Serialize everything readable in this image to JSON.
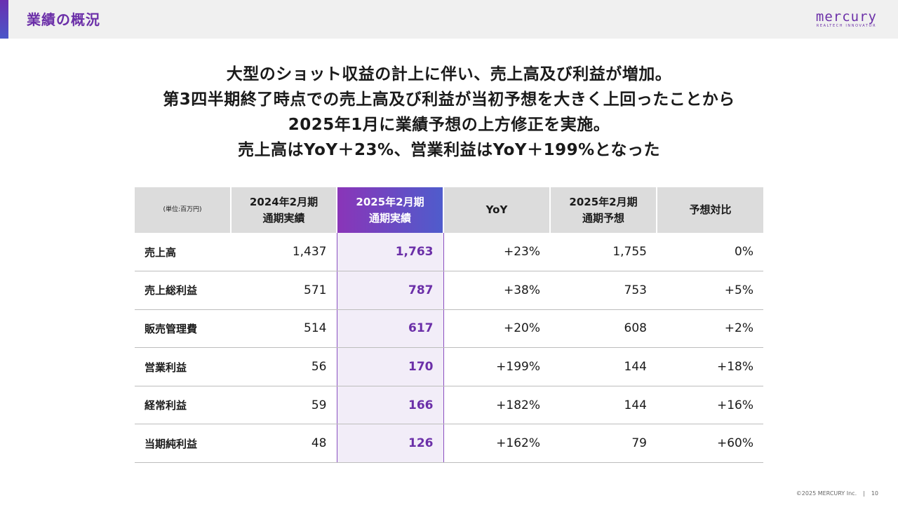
{
  "header": {
    "title": "業績の概況",
    "logo_word": "mercury",
    "logo_tagline": "REALTECH INNOVATOR"
  },
  "lead": {
    "lines": [
      "大型のショット収益の計上に伴い、売上高及び利益が増加。",
      "第3四半期終了時点での売上高及び利益が当初予想を大きく上回ったことから",
      "2025年1月に業績予想の上方修正を実施。",
      "売上高はYoY＋23%、営業利益はYoY＋199%となった"
    ]
  },
  "table": {
    "unit_label": "(単位:百万円)",
    "headers": [
      {
        "line1": "2024年2月期",
        "line2": "通期実績"
      },
      {
        "line1": "2025年2月期",
        "line2": "通期実績"
      },
      {
        "line1": "YoY",
        "line2": ""
      },
      {
        "line1": "2025年2月期",
        "line2": "通期予想"
      },
      {
        "line1": "予想対比",
        "line2": ""
      }
    ],
    "rows": [
      {
        "label": "売上高",
        "prev": "1,437",
        "curr": "1,763",
        "yoy": "+23%",
        "forecast": "1,755",
        "vs_forecast": "0%"
      },
      {
        "label": "売上総利益",
        "prev": "571",
        "curr": "787",
        "yoy": "+38%",
        "forecast": "753",
        "vs_forecast": "+5%"
      },
      {
        "label": "販売管理費",
        "prev": "514",
        "curr": "617",
        "yoy": "+20%",
        "forecast": "608",
        "vs_forecast": "+2%"
      },
      {
        "label": "営業利益",
        "prev": "56",
        "curr": "170",
        "yoy": "+199%",
        "forecast": "144",
        "vs_forecast": "+18%"
      },
      {
        "label": "経常利益",
        "prev": "59",
        "curr": "166",
        "yoy": "+182%",
        "forecast": "144",
        "vs_forecast": "+16%"
      },
      {
        "label": "当期純利益",
        "prev": "48",
        "curr": "126",
        "yoy": "+162%",
        "forecast": "79",
        "vs_forecast": "+60%"
      }
    ]
  },
  "footer": {
    "copyright": "©2025 MERCURY Inc.",
    "separator": "|",
    "page_number": "10"
  },
  "colors": {
    "brand_purple": "#6b2fa8",
    "gradient_start": "#8a35b8",
    "gradient_end": "#4f5ccc",
    "highlight_column_bg": "#f2edf8",
    "header_bg": "#dcdcdc"
  }
}
